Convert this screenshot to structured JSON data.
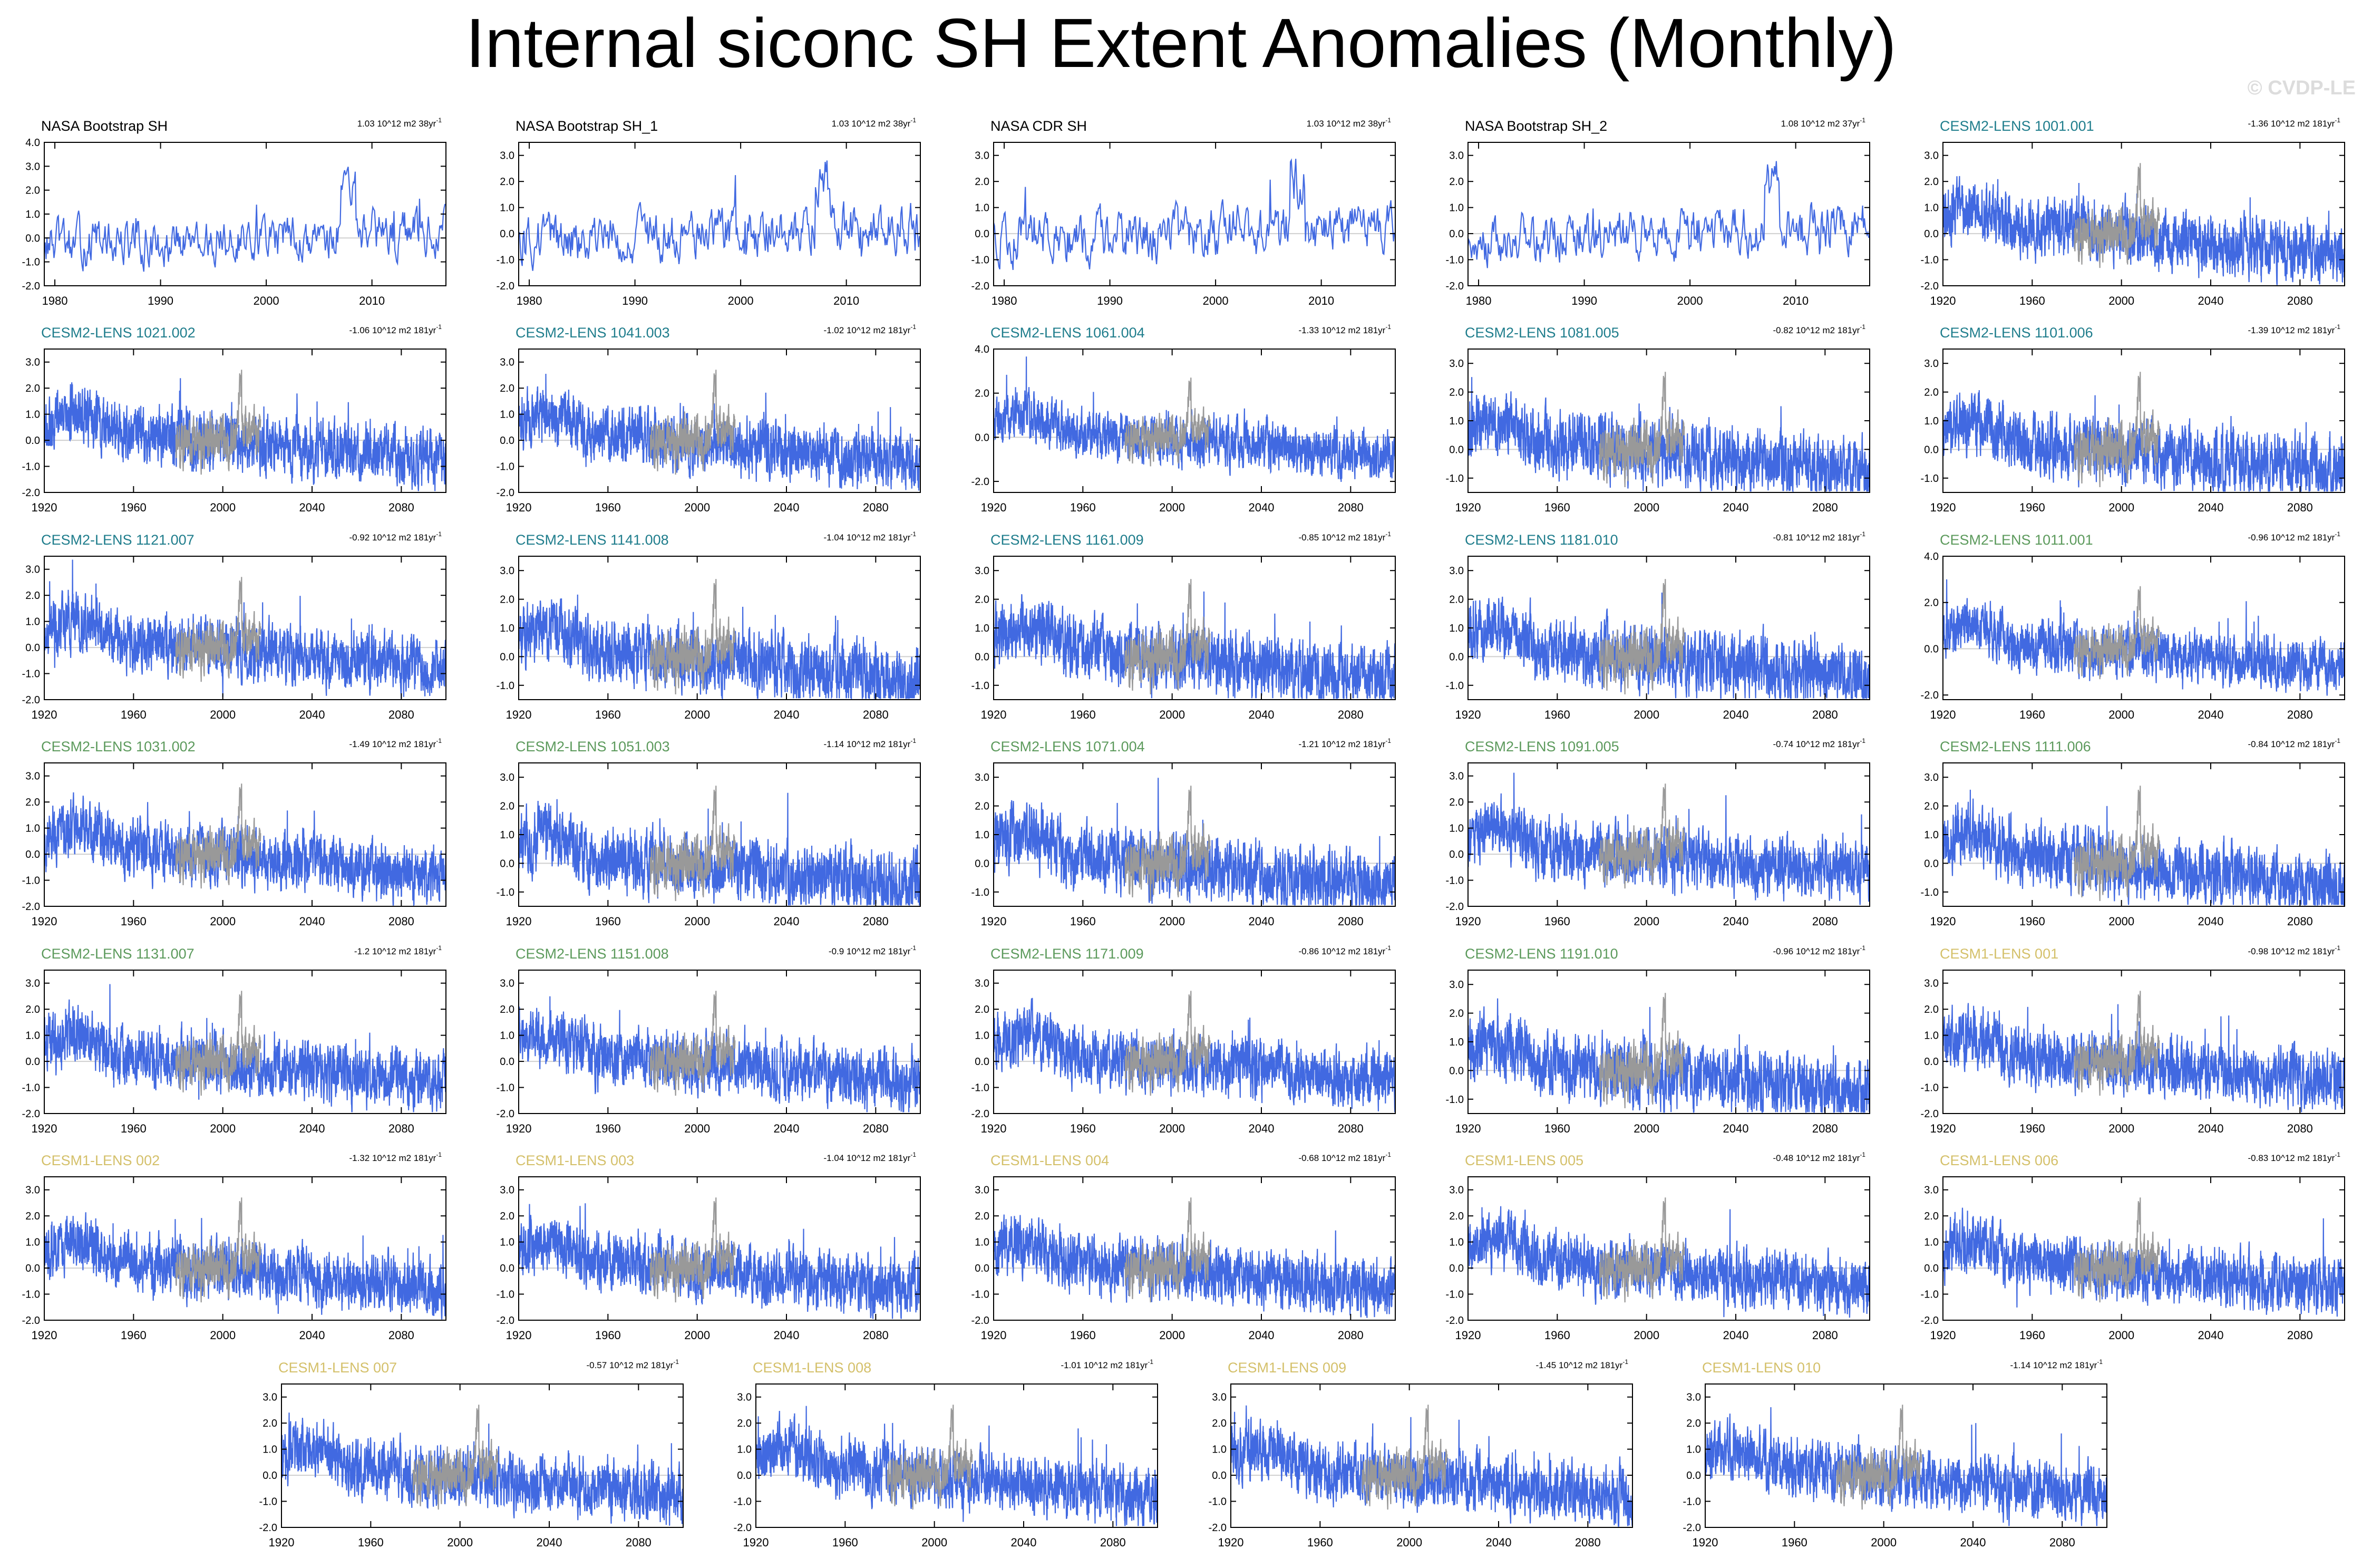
{
  "title": "Internal siconc SH Extent Anomalies (Monthly)",
  "watermark": "© CVDP-LE",
  "colors": {
    "series": "#4169e1",
    "observed_overlay": "#999999",
    "obs_label": "#000000",
    "cesm2_first_label": "#1f7d8c",
    "cesm2_second_label": "#5c9a5c",
    "cesm1_label": "#d4c06a"
  },
  "chart_data": [
    {
      "type": "line",
      "title": "NASA Bootstrap SH",
      "group": "obs",
      "trend": "1.03 10^12 m2 38yr",
      "xrange": [
        1979,
        2017
      ],
      "xticks": [
        "1980",
        "1990",
        "2000",
        "2010"
      ],
      "yticks": [
        "4.0",
        "3.0",
        "2.0",
        "1.0",
        "0.0",
        "-1.0",
        "-2.0"
      ],
      "ylim": [
        -2,
        4
      ]
    },
    {
      "type": "line",
      "title": "NASA Bootstrap SH_1",
      "group": "obs",
      "trend": "1.03 10^12 m2 38yr",
      "xrange": [
        1979,
        2017
      ],
      "xticks": [
        "1980",
        "1990",
        "2000",
        "2010"
      ],
      "yticks": [
        "3.0",
        "2.0",
        "1.0",
        "0.0",
        "-1.0",
        "-2.0"
      ],
      "ylim": [
        -2,
        3.5
      ]
    },
    {
      "type": "line",
      "title": "NASA CDR SH",
      "group": "obs",
      "trend": "1.03 10^12 m2 38yr",
      "xrange": [
        1979,
        2017
      ],
      "xticks": [
        "1980",
        "1990",
        "2000",
        "2010"
      ],
      "yticks": [
        "3.0",
        "2.0",
        "1.0",
        "0.0",
        "-1.0",
        "-2.0"
      ],
      "ylim": [
        -2,
        3.5
      ]
    },
    {
      "type": "line",
      "title": "NASA Bootstrap SH_2",
      "group": "obs",
      "trend": "1.08 10^12 m2 37yr",
      "xrange": [
        1979,
        2017
      ],
      "xticks": [
        "1980",
        "1990",
        "2000",
        "2010"
      ],
      "yticks": [
        "3.0",
        "2.0",
        "1.0",
        "0.0",
        "-1.0",
        "-2.0"
      ],
      "ylim": [
        -2,
        3.5
      ]
    },
    {
      "type": "line",
      "title": "CESM2-LENS 1001.001",
      "group": "cesm2a",
      "trend": "-1.36 10^12 m2 181yr",
      "xrange": [
        1920,
        2100
      ],
      "xticks": [
        "1920",
        "1960",
        "2000",
        "2040",
        "2080"
      ],
      "yticks": [
        "3.0",
        "2.0",
        "1.0",
        "0.0",
        "-1.0",
        "-2.0"
      ],
      "ylim": [
        -2,
        3.5
      ]
    },
    {
      "type": "line",
      "title": "CESM2-LENS 1021.002",
      "group": "cesm2a",
      "trend": "-1.06 10^12 m2 181yr",
      "xrange": [
        1920,
        2100
      ],
      "xticks": [
        "1920",
        "1960",
        "2000",
        "2040",
        "2080"
      ],
      "yticks": [
        "3.0",
        "2.0",
        "1.0",
        "0.0",
        "-1.0",
        "-2.0"
      ],
      "ylim": [
        -2,
        3.5
      ]
    },
    {
      "type": "line",
      "title": "CESM2-LENS 1041.003",
      "group": "cesm2a",
      "trend": "-1.02 10^12 m2 181yr",
      "xrange": [
        1920,
        2100
      ],
      "xticks": [
        "1920",
        "1960",
        "2000",
        "2040",
        "2080"
      ],
      "yticks": [
        "3.0",
        "2.0",
        "1.0",
        "0.0",
        "-1.0",
        "-2.0"
      ],
      "ylim": [
        -2,
        3.5
      ]
    },
    {
      "type": "line",
      "title": "CESM2-LENS 1061.004",
      "group": "cesm2a",
      "trend": "-1.33 10^12 m2 181yr",
      "xrange": [
        1920,
        2100
      ],
      "xticks": [
        "1920",
        "1960",
        "2000",
        "2040",
        "2080"
      ],
      "yticks": [
        "4.0",
        "2.0",
        "0.0",
        "-2.0"
      ],
      "ylim": [
        -2.5,
        4
      ]
    },
    {
      "type": "line",
      "title": "CESM2-LENS 1081.005",
      "group": "cesm2a",
      "trend": "-0.82 10^12 m2 181yr",
      "xrange": [
        1920,
        2100
      ],
      "xticks": [
        "1920",
        "1960",
        "2000",
        "2040",
        "2080"
      ],
      "yticks": [
        "3.0",
        "2.0",
        "1.0",
        "0.0",
        "-1.0"
      ],
      "ylim": [
        -1.5,
        3.5
      ]
    },
    {
      "type": "line",
      "title": "CESM2-LENS 1101.006",
      "group": "cesm2a",
      "trend": "-1.39 10^12 m2 181yr",
      "xrange": [
        1920,
        2100
      ],
      "xticks": [
        "1920",
        "1960",
        "2000",
        "2040",
        "2080"
      ],
      "yticks": [
        "3.0",
        "2.0",
        "1.0",
        "0.0",
        "-1.0"
      ],
      "ylim": [
        -1.5,
        3.5
      ]
    },
    {
      "type": "line",
      "title": "CESM2-LENS 1121.007",
      "group": "cesm2a",
      "trend": "-0.92 10^12 m2 181yr",
      "xrange": [
        1920,
        2100
      ],
      "xticks": [
        "1920",
        "1960",
        "2000",
        "2040",
        "2080"
      ],
      "yticks": [
        "3.0",
        "2.0",
        "1.0",
        "0.0",
        "-1.0",
        "-2.0"
      ],
      "ylim": [
        -2,
        3.5
      ]
    },
    {
      "type": "line",
      "title": "CESM2-LENS 1141.008",
      "group": "cesm2a",
      "trend": "-1.04 10^12 m2 181yr",
      "xrange": [
        1920,
        2100
      ],
      "xticks": [
        "1920",
        "1960",
        "2000",
        "2040",
        "2080"
      ],
      "yticks": [
        "3.0",
        "2.0",
        "1.0",
        "0.0",
        "-1.0"
      ],
      "ylim": [
        -1.5,
        3.5
      ]
    },
    {
      "type": "line",
      "title": "CESM2-LENS 1161.009",
      "group": "cesm2a",
      "trend": "-0.85 10^12 m2 181yr",
      "xrange": [
        1920,
        2100
      ],
      "xticks": [
        "1920",
        "1960",
        "2000",
        "2040",
        "2080"
      ],
      "yticks": [
        "3.0",
        "2.0",
        "1.0",
        "0.0",
        "-1.0"
      ],
      "ylim": [
        -1.5,
        3.5
      ]
    },
    {
      "type": "line",
      "title": "CESM2-LENS 1181.010",
      "group": "cesm2a",
      "trend": "-0.81 10^12 m2 181yr",
      "xrange": [
        1920,
        2100
      ],
      "xticks": [
        "1920",
        "1960",
        "2000",
        "2040",
        "2080"
      ],
      "yticks": [
        "3.0",
        "2.0",
        "1.0",
        "0.0",
        "-1.0"
      ],
      "ylim": [
        -1.5,
        3.5
      ]
    },
    {
      "type": "line",
      "title": "CESM2-LENS 1011.001",
      "group": "cesm2b",
      "trend": "-0.96 10^12 m2 181yr",
      "xrange": [
        1920,
        2100
      ],
      "xticks": [
        "1920",
        "1960",
        "2000",
        "2040",
        "2080"
      ],
      "yticks": [
        "4.0",
        "2.0",
        "0.0",
        "-2.0"
      ],
      "ylim": [
        -2.2,
        4
      ]
    },
    {
      "type": "line",
      "title": "CESM2-LENS 1031.002",
      "group": "cesm2b",
      "trend": "-1.49 10^12 m2 181yr",
      "xrange": [
        1920,
        2100
      ],
      "xticks": [
        "1920",
        "1960",
        "2000",
        "2040",
        "2080"
      ],
      "yticks": [
        "3.0",
        "2.0",
        "1.0",
        "0.0",
        "-1.0",
        "-2.0"
      ],
      "ylim": [
        -2,
        3.5
      ]
    },
    {
      "type": "line",
      "title": "CESM2-LENS 1051.003",
      "group": "cesm2b",
      "trend": "-1.14 10^12 m2 181yr",
      "xrange": [
        1920,
        2100
      ],
      "xticks": [
        "1920",
        "1960",
        "2000",
        "2040",
        "2080"
      ],
      "yticks": [
        "3.0",
        "2.0",
        "1.0",
        "0.0",
        "-1.0"
      ],
      "ylim": [
        -1.5,
        3.5
      ]
    },
    {
      "type": "line",
      "title": "CESM2-LENS 1071.004",
      "group": "cesm2b",
      "trend": "-1.21 10^12 m2 181yr",
      "xrange": [
        1920,
        2100
      ],
      "xticks": [
        "1920",
        "1960",
        "2000",
        "2040",
        "2080"
      ],
      "yticks": [
        "3.0",
        "2.0",
        "1.0",
        "0.0",
        "-1.0"
      ],
      "ylim": [
        -1.5,
        3.5
      ]
    },
    {
      "type": "line",
      "title": "CESM2-LENS 1091.005",
      "group": "cesm2b",
      "trend": "-0.74 10^12 m2 181yr",
      "xrange": [
        1920,
        2100
      ],
      "xticks": [
        "1920",
        "1960",
        "2000",
        "2040",
        "2080"
      ],
      "yticks": [
        "3.0",
        "2.0",
        "1.0",
        "0.0",
        "-1.0",
        "-2.0"
      ],
      "ylim": [
        -2,
        3.5
      ]
    },
    {
      "type": "line",
      "title": "CESM2-LENS 1111.006",
      "group": "cesm2b",
      "trend": "-0.84 10^12 m2 181yr",
      "xrange": [
        1920,
        2100
      ],
      "xticks": [
        "1920",
        "1960",
        "2000",
        "2040",
        "2080"
      ],
      "yticks": [
        "3.0",
        "2.0",
        "1.0",
        "0.0",
        "-1.0"
      ],
      "ylim": [
        -1.5,
        3.5
      ]
    },
    {
      "type": "line",
      "title": "CESM2-LENS 1131.007",
      "group": "cesm2b",
      "trend": "-1.2 10^12 m2 181yr",
      "xrange": [
        1920,
        2100
      ],
      "xticks": [
        "1920",
        "1960",
        "2000",
        "2040",
        "2080"
      ],
      "yticks": [
        "3.0",
        "2.0",
        "1.0",
        "0.0",
        "-1.0",
        "-2.0"
      ],
      "ylim": [
        -2,
        3.5
      ]
    },
    {
      "type": "line",
      "title": "CESM2-LENS 1151.008",
      "group": "cesm2b",
      "trend": "-0.9 10^12 m2 181yr",
      "xrange": [
        1920,
        2100
      ],
      "xticks": [
        "1920",
        "1960",
        "2000",
        "2040",
        "2080"
      ],
      "yticks": [
        "3.0",
        "2.0",
        "1.0",
        "0.0",
        "-1.0",
        "-2.0"
      ],
      "ylim": [
        -2,
        3.5
      ]
    },
    {
      "type": "line",
      "title": "CESM2-LENS 1171.009",
      "group": "cesm2b",
      "trend": "-0.86 10^12 m2 181yr",
      "xrange": [
        1920,
        2100
      ],
      "xticks": [
        "1920",
        "1960",
        "2000",
        "2040",
        "2080"
      ],
      "yticks": [
        "3.0",
        "2.0",
        "1.0",
        "0.0",
        "-1.0",
        "-2.0"
      ],
      "ylim": [
        -2,
        3.5
      ]
    },
    {
      "type": "line",
      "title": "CESM2-LENS 1191.010",
      "group": "cesm2b",
      "trend": "-0.96 10^12 m2 181yr",
      "xrange": [
        1920,
        2100
      ],
      "xticks": [
        "1920",
        "1960",
        "2000",
        "2040",
        "2080"
      ],
      "yticks": [
        "3.0",
        "2.0",
        "1.0",
        "0.0",
        "-1.0"
      ],
      "ylim": [
        -1.5,
        3.5
      ]
    },
    {
      "type": "line",
      "title": "CESM1-LENS 001",
      "group": "cesm1",
      "trend": "-0.98 10^12 m2 181yr",
      "xrange": [
        1920,
        2100
      ],
      "xticks": [
        "1920",
        "1960",
        "2000",
        "2040",
        "2080"
      ],
      "yticks": [
        "3.0",
        "2.0",
        "1.0",
        "0.0",
        "-1.0",
        "-2.0"
      ],
      "ylim": [
        -2,
        3.5
      ]
    },
    {
      "type": "line",
      "title": "CESM1-LENS 002",
      "group": "cesm1",
      "trend": "-1.32 10^12 m2 181yr",
      "xrange": [
        1920,
        2100
      ],
      "xticks": [
        "1920",
        "1960",
        "2000",
        "2040",
        "2080"
      ],
      "yticks": [
        "3.0",
        "2.0",
        "1.0",
        "0.0",
        "-1.0",
        "-2.0"
      ],
      "ylim": [
        -2,
        3.5
      ]
    },
    {
      "type": "line",
      "title": "CESM1-LENS 003",
      "group": "cesm1",
      "trend": "-1.04 10^12 m2 181yr",
      "xrange": [
        1920,
        2100
      ],
      "xticks": [
        "1920",
        "1960",
        "2000",
        "2040",
        "2080"
      ],
      "yticks": [
        "3.0",
        "2.0",
        "1.0",
        "0.0",
        "-1.0",
        "-2.0"
      ],
      "ylim": [
        -2,
        3.5
      ]
    },
    {
      "type": "line",
      "title": "CESM1-LENS 004",
      "group": "cesm1",
      "trend": "-0.68 10^12 m2 181yr",
      "xrange": [
        1920,
        2100
      ],
      "xticks": [
        "1920",
        "1960",
        "2000",
        "2040",
        "2080"
      ],
      "yticks": [
        "3.0",
        "2.0",
        "1.0",
        "0.0",
        "-1.0",
        "-2.0"
      ],
      "ylim": [
        -2,
        3.5
      ]
    },
    {
      "type": "line",
      "title": "CESM1-LENS 005",
      "group": "cesm1",
      "trend": "-0.48 10^12 m2 181yr",
      "xrange": [
        1920,
        2100
      ],
      "xticks": [
        "1920",
        "1960",
        "2000",
        "2040",
        "2080"
      ],
      "yticks": [
        "3.0",
        "2.0",
        "1.0",
        "0.0",
        "-1.0",
        "-2.0"
      ],
      "ylim": [
        -2,
        3.5
      ]
    },
    {
      "type": "line",
      "title": "CESM1-LENS 006",
      "group": "cesm1",
      "trend": "-0.83 10^12 m2 181yr",
      "xrange": [
        1920,
        2100
      ],
      "xticks": [
        "1920",
        "1960",
        "2000",
        "2040",
        "2080"
      ],
      "yticks": [
        "3.0",
        "2.0",
        "1.0",
        "0.0",
        "-1.0",
        "-2.0"
      ],
      "ylim": [
        -2,
        3.5
      ]
    },
    {
      "type": "line",
      "title": "CESM1-LENS 007",
      "group": "cesm1",
      "trend": "-0.57 10^12 m2 181yr",
      "xrange": [
        1920,
        2100
      ],
      "xticks": [
        "1920",
        "1960",
        "2000",
        "2040",
        "2080"
      ],
      "yticks": [
        "3.0",
        "2.0",
        "1.0",
        "0.0",
        "-1.0",
        "-2.0"
      ],
      "ylim": [
        -2,
        3.5
      ]
    },
    {
      "type": "line",
      "title": "CESM1-LENS 008",
      "group": "cesm1",
      "trend": "-1.01 10^12 m2 181yr",
      "xrange": [
        1920,
        2100
      ],
      "xticks": [
        "1920",
        "1960",
        "2000",
        "2040",
        "2080"
      ],
      "yticks": [
        "3.0",
        "2.0",
        "1.0",
        "0.0",
        "-1.0",
        "-2.0"
      ],
      "ylim": [
        -2,
        3.5
      ]
    },
    {
      "type": "line",
      "title": "CESM1-LENS 009",
      "group": "cesm1",
      "trend": "-1.45 10^12 m2 181yr",
      "xrange": [
        1920,
        2100
      ],
      "xticks": [
        "1920",
        "1960",
        "2000",
        "2040",
        "2080"
      ],
      "yticks": [
        "3.0",
        "2.0",
        "1.0",
        "0.0",
        "-1.0",
        "-2.0"
      ],
      "ylim": [
        -2,
        3.5
      ]
    },
    {
      "type": "line",
      "title": "CESM1-LENS 010",
      "group": "cesm1",
      "trend": "-1.14 10^12 m2 181yr",
      "xrange": [
        1920,
        2100
      ],
      "xticks": [
        "1920",
        "1960",
        "2000",
        "2040",
        "2080"
      ],
      "yticks": [
        "3.0",
        "2.0",
        "1.0",
        "0.0",
        "-1.0",
        "-2.0"
      ],
      "ylim": [
        -2,
        3.5
      ]
    }
  ]
}
